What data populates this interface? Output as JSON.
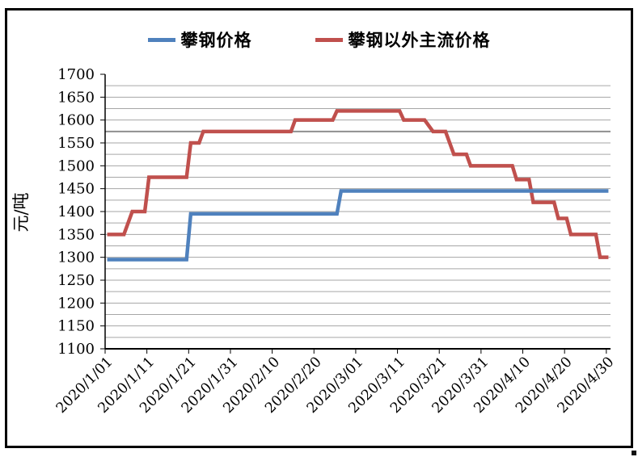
{
  "figure": {
    "background": "#ffffff",
    "border_color": "#000000"
  },
  "legend": {
    "items": [
      {
        "label": "攀钢价格",
        "color": "#4F81BD"
      },
      {
        "label": "攀钢以外主流价格",
        "color": "#C0504D"
      }
    ]
  },
  "chart_data": {
    "type": "line",
    "title": "",
    "xlabel": "",
    "ylabel": "元/吨",
    "ylim": [
      1100,
      1700
    ],
    "y_tick_step": 50,
    "y_tick_labels": [
      "1100",
      "1150",
      "1200",
      "1250",
      "1300",
      "1350",
      "1400",
      "1450",
      "1500",
      "1550",
      "1600",
      "1650",
      "1700"
    ],
    "gridline_step": 25,
    "thick_gridline_value": 1575,
    "grid": "on",
    "legend_position": "top",
    "x_days_total": 121,
    "x_tick_interval_days": 10,
    "x_tick_labels": [
      "2020/1/01",
      "2020/1/11",
      "2020/1/21",
      "2020/1/31",
      "2020/2/10",
      "2020/2/20",
      "2020/3/01",
      "2020/3/11",
      "2020/3/21",
      "2020/3/31",
      "2020/4/10",
      "2020/4/20",
      "2020/4/30"
    ],
    "series": [
      {
        "name": "攀钢价格",
        "color": "#4F81BD",
        "segments": [
          {
            "from": "2020/1/01",
            "to": "2020/1/20",
            "d0": 0,
            "d1": 19,
            "value": 1295
          },
          {
            "from": "2020/1/21",
            "to": "2020/2/25",
            "d0": 20,
            "d1": 55,
            "value": 1395
          },
          {
            "from": "2020/2/26",
            "to": "2020/4/30",
            "d0": 56,
            "d1": 120,
            "value": 1445
          }
        ]
      },
      {
        "name": "攀钢以外主流价格",
        "color": "#C0504D",
        "segments": [
          {
            "from": "2020/1/01",
            "to": "2020/1/05",
            "d0": 0,
            "d1": 4,
            "value": 1350
          },
          {
            "from": "2020/1/07",
            "to": "2020/1/10",
            "d0": 6,
            "d1": 9,
            "value": 1400
          },
          {
            "from": "2020/1/11",
            "to": "2020/1/20",
            "d0": 10,
            "d1": 19,
            "value": 1475
          },
          {
            "from": "2020/1/21",
            "to": "2020/1/23",
            "d0": 20,
            "d1": 22,
            "value": 1550
          },
          {
            "from": "2020/1/24",
            "to": "2020/2/14",
            "d0": 23,
            "d1": 44,
            "value": 1575
          },
          {
            "from": "2020/2/15",
            "to": "2020/2/24",
            "d0": 45,
            "d1": 54,
            "value": 1600
          },
          {
            "from": "2020/2/25",
            "to": "2020/3/11",
            "d0": 55,
            "d1": 70,
            "value": 1620
          },
          {
            "from": "2020/3/12",
            "to": "2020/3/17",
            "d0": 71,
            "d1": 76,
            "value": 1600
          },
          {
            "from": "2020/3/19",
            "to": "2020/3/22",
            "d0": 78,
            "d1": 81,
            "value": 1575
          },
          {
            "from": "2020/3/24",
            "to": "2020/3/27",
            "d0": 83,
            "d1": 86,
            "value": 1525
          },
          {
            "from": "2020/3/28",
            "to": "2020/4/07",
            "d0": 87,
            "d1": 97,
            "value": 1500
          },
          {
            "from": "2020/4/08",
            "to": "2020/4/11",
            "d0": 98,
            "d1": 101,
            "value": 1470
          },
          {
            "from": "2020/4/12",
            "to": "2020/4/17",
            "d0": 102,
            "d1": 107,
            "value": 1420
          },
          {
            "from": "2020/4/18",
            "to": "2020/4/20",
            "d0": 108,
            "d1": 110,
            "value": 1385
          },
          {
            "from": "2020/4/21",
            "to": "2020/4/27",
            "d0": 111,
            "d1": 117,
            "value": 1350
          },
          {
            "from": "2020/4/28",
            "to": "2020/4/30",
            "d0": 118,
            "d1": 120,
            "value": 1300
          }
        ]
      }
    ]
  }
}
